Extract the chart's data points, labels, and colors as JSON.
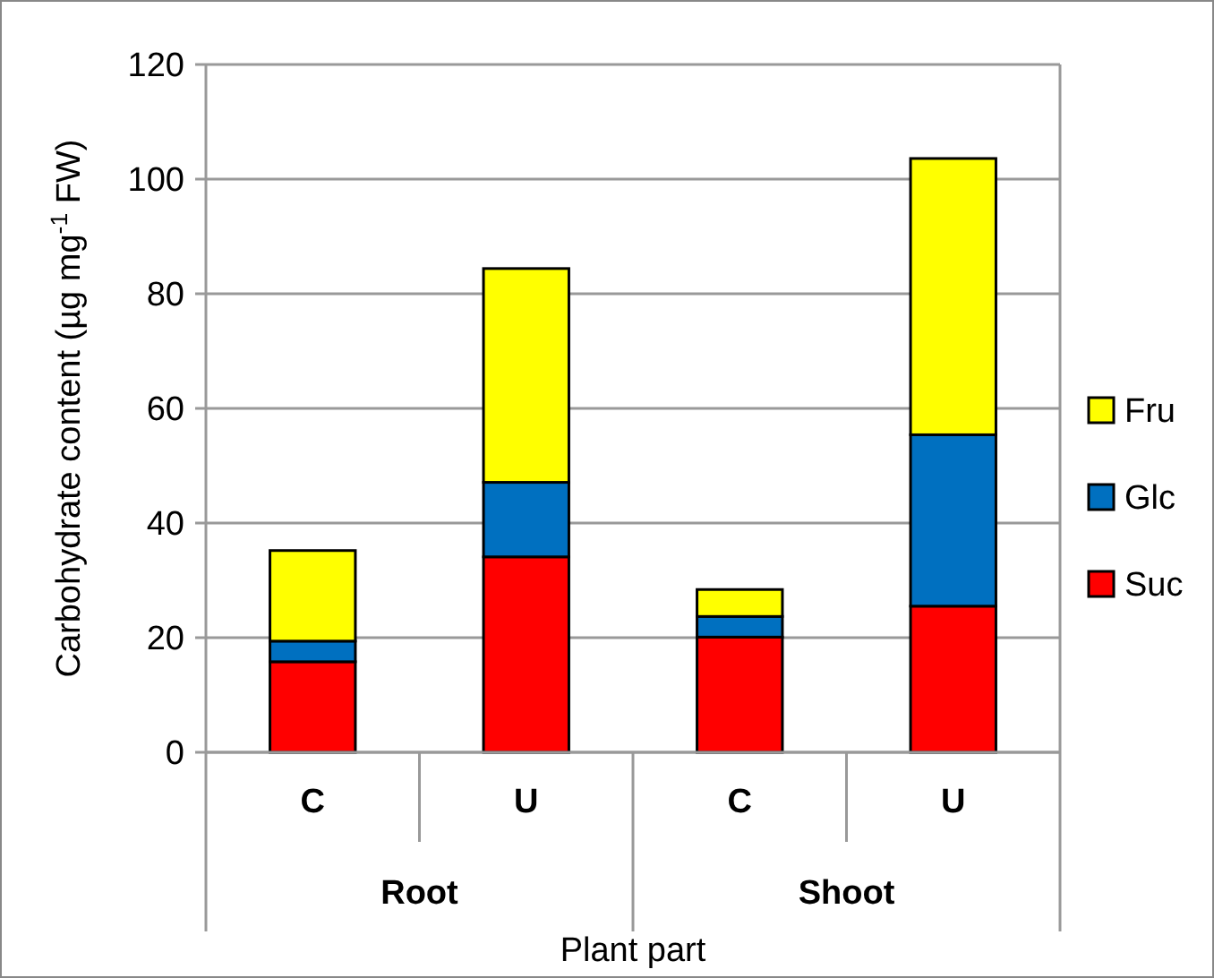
{
  "chart_data": {
    "type": "bar",
    "stacked": true,
    "xlabel": "Plant part",
    "ylabel": "Carbohydrate content (µg mg$^{-1}$ FW)",
    "categories": [
      "C",
      "U",
      "C",
      "U"
    ],
    "annotations": [
      "Root",
      "Shoot"
    ],
    "series": [
      {
        "name": "Suc",
        "color": "#ff0000",
        "values": [
          15.8,
          34.1,
          20.1,
          25.5
        ]
      },
      {
        "name": "Glc",
        "color": "#0070c0",
        "values": [
          3.6,
          13,
          3.6,
          29.9
        ]
      },
      {
        "name": "Fru",
        "color": "#ffff00",
        "values": [
          15.8,
          37.3,
          4.7,
          48.2
        ]
      }
    ],
    "ylim": [
      0,
      120
    ],
    "yticks": [
      0,
      20,
      40,
      60,
      80,
      100,
      120
    ],
    "grid": "y",
    "legend": "right"
  }
}
